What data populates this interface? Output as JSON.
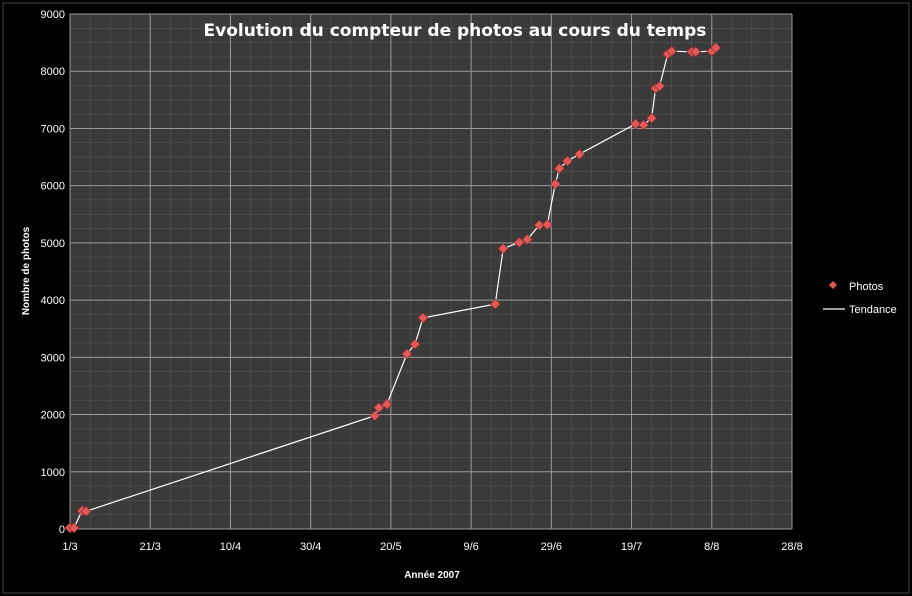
{
  "chart_data": {
    "type": "scatter",
    "title": "Evolution du compteur de photos au cours du temps",
    "xlabel": "Année 2007",
    "ylabel": "Nombre de photos",
    "x_ticks": [
      "1/3",
      "21/3",
      "10/4",
      "30/4",
      "20/5",
      "9/6",
      "29/6",
      "19/7",
      "8/8",
      "28/8"
    ],
    "x_tick_days": [
      0,
      20,
      40,
      60,
      80,
      100,
      120,
      140,
      160,
      180
    ],
    "xlim": [
      0,
      180
    ],
    "ylim": [
      0,
      9000
    ],
    "y_ticks": [
      0,
      1000,
      2000,
      3000,
      4000,
      5000,
      6000,
      7000,
      8000,
      9000
    ],
    "grid": true,
    "legend_position": "right",
    "series": [
      {
        "name": "Photos",
        "marker": "diamond",
        "color": "#e05a5a",
        "points": [
          {
            "x": "1/3",
            "y": 20
          },
          {
            "x": "2/3",
            "y": 20
          },
          {
            "x": "4/3",
            "y": 320
          },
          {
            "x": "5/3",
            "y": 310
          },
          {
            "x": "16/5",
            "y": 1980
          },
          {
            "x": "17/5",
            "y": 2120
          },
          {
            "x": "19/5",
            "y": 2180
          },
          {
            "x": "24/5",
            "y": 3060
          },
          {
            "x": "26/5",
            "y": 3230
          },
          {
            "x": "28/5",
            "y": 3690
          },
          {
            "x": "15/6",
            "y": 3930
          },
          {
            "x": "17/6",
            "y": 4900
          },
          {
            "x": "21/6",
            "y": 5010
          },
          {
            "x": "23/6",
            "y": 5060
          },
          {
            "x": "26/6",
            "y": 5310
          },
          {
            "x": "28/6",
            "y": 5320
          },
          {
            "x": "30/6",
            "y": 6030
          },
          {
            "x": "1/7",
            "y": 6300
          },
          {
            "x": "3/7",
            "y": 6430
          },
          {
            "x": "6/7",
            "y": 6550
          },
          {
            "x": "20/7",
            "y": 7080
          },
          {
            "x": "22/7",
            "y": 7060
          },
          {
            "x": "24/7",
            "y": 7180
          },
          {
            "x": "25/7",
            "y": 7700
          },
          {
            "x": "26/7",
            "y": 7740
          },
          {
            "x": "28/7",
            "y": 8300
          },
          {
            "x": "29/7",
            "y": 8350
          },
          {
            "x": "3/8",
            "y": 8340
          },
          {
            "x": "4/8",
            "y": 8340
          },
          {
            "x": "8/8",
            "y": 8350
          },
          {
            "x": "9/8",
            "y": 8410
          }
        ]
      },
      {
        "name": "Tendance",
        "type": "line",
        "color": "#ffffff"
      }
    ]
  }
}
